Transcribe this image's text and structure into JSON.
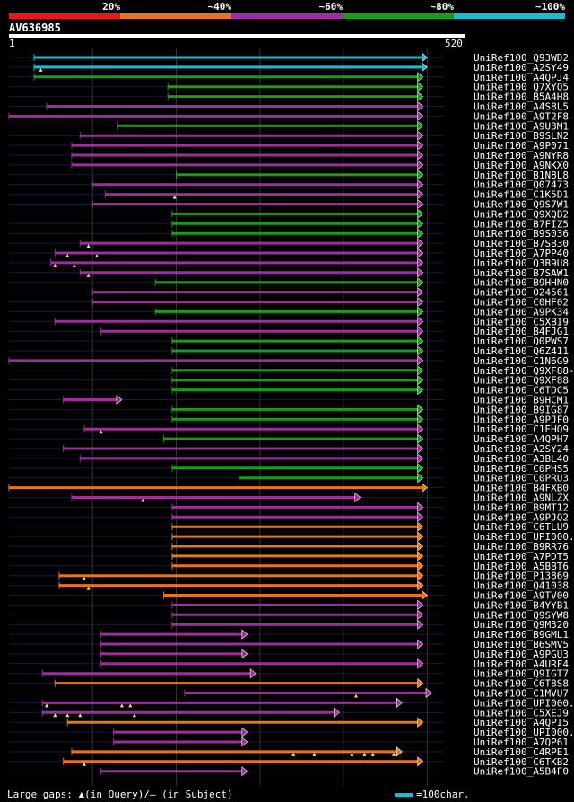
{
  "legend": {
    "segments": [
      {
        "label": "20%",
        "color": "#e31a1c"
      },
      {
        "label": "~40%",
        "color": "#e6761b"
      },
      {
        "label": "~60%",
        "color": "#9b2f9b"
      },
      {
        "label": "~80%",
        "color": "#1d9a1d"
      },
      {
        "label": "~100%",
        "color": "#17becf"
      }
    ]
  },
  "query": {
    "name": "AV636985",
    "start_label": "1",
    "end_label": "520",
    "length": 520
  },
  "footer": {
    "gaps_text": "Large gaps: ▲(in Query)/— (in Subject)",
    "scale_text": "=100char."
  },
  "chart_data": {
    "type": "alignment",
    "title": "AV636985",
    "x_range": [
      1,
      520
    ],
    "hits": [
      {
        "name": "UniRef100_Q93WD2",
        "start": 30,
        "end": 500,
        "cls": "c5",
        "arrow": true,
        "gaps": []
      },
      {
        "name": "UniRef100_A2SY49",
        "start": 30,
        "end": 500,
        "cls": "c5",
        "arrow": true,
        "gaps": [
          38
        ]
      },
      {
        "name": "UniRef100_A4QPJ4",
        "start": 30,
        "end": 495,
        "cls": "c4",
        "arrow": true,
        "gaps": []
      },
      {
        "name": "UniRef100_Q7XYQ5",
        "start": 190,
        "end": 495,
        "cls": "c4",
        "arrow": true,
        "gaps": []
      },
      {
        "name": "UniRef100_B5A4H8",
        "start": 190,
        "end": 495,
        "cls": "c4",
        "arrow": true,
        "gaps": []
      },
      {
        "name": "UniRef100_A4S8L5",
        "start": 45,
        "end": 495,
        "cls": "c3",
        "arrow": true,
        "gaps": []
      },
      {
        "name": "UniRef100_A9T2F8",
        "start": 0,
        "end": 495,
        "cls": "c3",
        "arrow": true,
        "gaps": []
      },
      {
        "name": "UniRef100_A9U3M1",
        "start": 130,
        "end": 495,
        "cls": "c4",
        "arrow": true,
        "gaps": []
      },
      {
        "name": "UniRef100_B9SLN2",
        "start": 85,
        "end": 495,
        "cls": "c3",
        "arrow": true,
        "gaps": []
      },
      {
        "name": "UniRef100_A9P071",
        "start": 75,
        "end": 495,
        "cls": "c3",
        "arrow": true,
        "gaps": []
      },
      {
        "name": "UniRef100_A9NYR8",
        "start": 75,
        "end": 495,
        "cls": "c3",
        "arrow": true,
        "gaps": []
      },
      {
        "name": "UniRef100_A9NKX0",
        "start": 75,
        "end": 495,
        "cls": "c3",
        "arrow": true,
        "gaps": []
      },
      {
        "name": "UniRef100_B1N8L8",
        "start": 200,
        "end": 495,
        "cls": "c4",
        "arrow": true,
        "gaps": []
      },
      {
        "name": "UniRef100_Q07473",
        "start": 100,
        "end": 495,
        "cls": "c3",
        "arrow": true,
        "gaps": []
      },
      {
        "name": "UniRef100_C1K5D1",
        "start": 115,
        "end": 495,
        "cls": "c3",
        "arrow": true,
        "gaps": [
          198
        ]
      },
      {
        "name": "UniRef100_Q9S7W1",
        "start": 100,
        "end": 495,
        "cls": "c3",
        "arrow": true,
        "gaps": []
      },
      {
        "name": "UniRef100_Q9XQB2",
        "start": 195,
        "end": 495,
        "cls": "c4",
        "arrow": true,
        "gaps": []
      },
      {
        "name": "UniRef100_B7FIZ5",
        "start": 195,
        "end": 495,
        "cls": "c4",
        "arrow": true,
        "gaps": []
      },
      {
        "name": "UniRef100_B9S036",
        "start": 195,
        "end": 495,
        "cls": "c4",
        "arrow": true,
        "gaps": []
      },
      {
        "name": "UniRef100_B7SB30",
        "start": 85,
        "end": 495,
        "cls": "c3",
        "arrow": true,
        "gaps": [
          95
        ]
      },
      {
        "name": "UniRef100_A7PP40",
        "start": 55,
        "end": 495,
        "cls": "c3",
        "arrow": true,
        "gaps": [
          70,
          105
        ]
      },
      {
        "name": "UniRef100_Q3B9U8",
        "start": 50,
        "end": 495,
        "cls": "c3",
        "arrow": true,
        "gaps": [
          55,
          78
        ]
      },
      {
        "name": "UniRef100_B7SAW1",
        "start": 85,
        "end": 495,
        "cls": "c3",
        "arrow": true,
        "gaps": [
          95
        ]
      },
      {
        "name": "UniRef100_B9HHN0",
        "start": 175,
        "end": 495,
        "cls": "c4",
        "arrow": true,
        "gaps": []
      },
      {
        "name": "UniRef100_O24561",
        "start": 100,
        "end": 495,
        "cls": "c3",
        "arrow": true,
        "gaps": []
      },
      {
        "name": "UniRef100_C0HF02",
        "start": 100,
        "end": 495,
        "cls": "c3",
        "arrow": true,
        "gaps": []
      },
      {
        "name": "UniRef100_A9PK34",
        "start": 175,
        "end": 495,
        "cls": "c4",
        "arrow": true,
        "gaps": []
      },
      {
        "name": "UniRef100_C5XBI9",
        "start": 55,
        "end": 495,
        "cls": "c3",
        "arrow": true,
        "gaps": []
      },
      {
        "name": "UniRef100_B4FJG1",
        "start": 110,
        "end": 495,
        "cls": "c3",
        "arrow": true,
        "gaps": []
      },
      {
        "name": "UniRef100_Q0PWS7",
        "start": 195,
        "end": 495,
        "cls": "c4",
        "arrow": true,
        "gaps": []
      },
      {
        "name": "UniRef100_Q6Z411",
        "start": 195,
        "end": 495,
        "cls": "c4",
        "arrow": true,
        "gaps": []
      },
      {
        "name": "UniRef100_C1N6G9",
        "start": 0,
        "end": 495,
        "cls": "c3",
        "arrow": true,
        "gaps": []
      },
      {
        "name": "UniRef100_Q9XF88-2",
        "start": 195,
        "end": 495,
        "cls": "c4",
        "arrow": true,
        "gaps": []
      },
      {
        "name": "UniRef100_Q9XF88",
        "start": 195,
        "end": 495,
        "cls": "c4",
        "arrow": true,
        "gaps": []
      },
      {
        "name": "UniRef100_C6TDC5",
        "start": 195,
        "end": 495,
        "cls": "c4",
        "arrow": true,
        "gaps": []
      },
      {
        "name": "UniRef100_B9HCM1",
        "start": 65,
        "end": 135,
        "cls": "c3",
        "arrow": true,
        "gaps": []
      },
      {
        "name": "UniRef100_B9IG87",
        "start": 195,
        "end": 495,
        "cls": "c4",
        "arrow": true,
        "gaps": []
      },
      {
        "name": "UniRef100_A9PJF0",
        "start": 195,
        "end": 495,
        "cls": "c4",
        "arrow": true,
        "gaps": []
      },
      {
        "name": "UniRef100_C1EHQ9",
        "start": 90,
        "end": 495,
        "cls": "c3",
        "arrow": true,
        "gaps": [
          110
        ]
      },
      {
        "name": "UniRef100_A4QPH7",
        "start": 185,
        "end": 495,
        "cls": "c4",
        "arrow": true,
        "gaps": []
      },
      {
        "name": "UniRef100_A2SY24",
        "start": 65,
        "end": 495,
        "cls": "c3",
        "arrow": true,
        "gaps": []
      },
      {
        "name": "UniRef100_A3BL40",
        "start": 85,
        "end": 495,
        "cls": "c3",
        "arrow": true,
        "gaps": []
      },
      {
        "name": "UniRef100_C0PHS5",
        "start": 195,
        "end": 495,
        "cls": "c4",
        "arrow": true,
        "gaps": []
      },
      {
        "name": "UniRef100_C0PRU3",
        "start": 275,
        "end": 495,
        "cls": "c4",
        "arrow": true,
        "gaps": []
      },
      {
        "name": "UniRef100_B4FXB0",
        "start": 0,
        "end": 500,
        "cls": "c2",
        "arrow": true,
        "gaps": []
      },
      {
        "name": "UniRef100_A9NLZX",
        "start": 75,
        "end": 420,
        "cls": "c3",
        "arrow": true,
        "gaps": [
          160
        ]
      },
      {
        "name": "UniRef100_B9MT12",
        "start": 195,
        "end": 495,
        "cls": "c3",
        "arrow": true,
        "gaps": []
      },
      {
        "name": "UniRef100_A9PJQ2",
        "start": 195,
        "end": 495,
        "cls": "c3",
        "arrow": true,
        "gaps": []
      },
      {
        "name": "UniRef100_C6TLU9",
        "start": 195,
        "end": 495,
        "cls": "c2",
        "arrow": true,
        "gaps": []
      },
      {
        "name": "UniRef100_UPI000..",
        "start": 195,
        "end": 495,
        "cls": "c2",
        "arrow": true,
        "gaps": []
      },
      {
        "name": "UniRef100_B9RR76",
        "start": 195,
        "end": 495,
        "cls": "c2",
        "arrow": true,
        "gaps": []
      },
      {
        "name": "UniRef100_A7PDT5",
        "start": 195,
        "end": 495,
        "cls": "c2",
        "arrow": true,
        "gaps": []
      },
      {
        "name": "UniRef100_A5BBT6",
        "start": 195,
        "end": 495,
        "cls": "c2",
        "arrow": true,
        "gaps": []
      },
      {
        "name": "UniRef100_P13869",
        "start": 60,
        "end": 495,
        "cls": "c2",
        "arrow": true,
        "gaps": [
          90
        ]
      },
      {
        "name": "UniRef100_Q41038",
        "start": 60,
        "end": 495,
        "cls": "c2",
        "arrow": true,
        "gaps": [
          95
        ]
      },
      {
        "name": "UniRef100_A9TV00",
        "start": 185,
        "end": 500,
        "cls": "c2",
        "arrow": true,
        "gaps": []
      },
      {
        "name": "UniRef100_B4YYB1",
        "start": 195,
        "end": 495,
        "cls": "c3",
        "arrow": true,
        "gaps": []
      },
      {
        "name": "UniRef100_Q9SYW8",
        "start": 195,
        "end": 495,
        "cls": "c3",
        "arrow": true,
        "gaps": []
      },
      {
        "name": "UniRef100_Q9M320",
        "start": 195,
        "end": 495,
        "cls": "c3",
        "arrow": true,
        "gaps": []
      },
      {
        "name": "UniRef100_B9GML1",
        "start": 110,
        "end": 285,
        "cls": "c3",
        "arrow": true,
        "gaps": []
      },
      {
        "name": "UniRef100_B6SMV5",
        "start": 110,
        "end": 495,
        "cls": "c3",
        "arrow": true,
        "gaps": []
      },
      {
        "name": "UniRef100_A9PGU3",
        "start": 110,
        "end": 285,
        "cls": "c3",
        "arrow": true,
        "gaps": []
      },
      {
        "name": "UniRef100_A4URF4",
        "start": 110,
        "end": 495,
        "cls": "c3",
        "arrow": true,
        "gaps": []
      },
      {
        "name": "UniRef100_Q9IGT7",
        "start": 40,
        "end": 295,
        "cls": "c3",
        "arrow": true,
        "gaps": []
      },
      {
        "name": "UniRef100_C6T8S8",
        "start": 55,
        "end": 495,
        "cls": "c2",
        "arrow": true,
        "gaps": []
      },
      {
        "name": "UniRef100_C1MVU7",
        "start": 210,
        "end": 505,
        "cls": "c3",
        "arrow": true,
        "gaps": [
          415
        ]
      },
      {
        "name": "UniRef100_UPI000..",
        "start": 40,
        "end": 470,
        "cls": "c3",
        "arrow": true,
        "gaps": [
          45,
          135,
          145
        ]
      },
      {
        "name": "UniRef100_C5XEJ9",
        "start": 40,
        "end": 395,
        "cls": "c3",
        "arrow": true,
        "gaps": [
          55,
          70,
          85,
          150
        ]
      },
      {
        "name": "UniRef100_A4QPI5",
        "start": 70,
        "end": 495,
        "cls": "c2",
        "arrow": true,
        "gaps": []
      },
      {
        "name": "UniRef100_UPI000..",
        "start": 125,
        "end": 285,
        "cls": "c3",
        "arrow": true,
        "gaps": []
      },
      {
        "name": "UniRef100_A7QP61",
        "start": 125,
        "end": 285,
        "cls": "c3",
        "arrow": true,
        "gaps": []
      },
      {
        "name": "UniRef100_C4RPE1",
        "start": 75,
        "end": 470,
        "cls": "c2",
        "arrow": true,
        "gaps": [
          340,
          365,
          410,
          425,
          435,
          460
        ]
      },
      {
        "name": "UniRef100_C6TKB2",
        "start": 65,
        "end": 495,
        "cls": "c2",
        "arrow": true,
        "gaps": [
          90
        ]
      },
      {
        "name": "UniRef100_A5B4F0",
        "start": 110,
        "end": 285,
        "cls": "c3",
        "arrow": true,
        "gaps": []
      }
    ]
  }
}
